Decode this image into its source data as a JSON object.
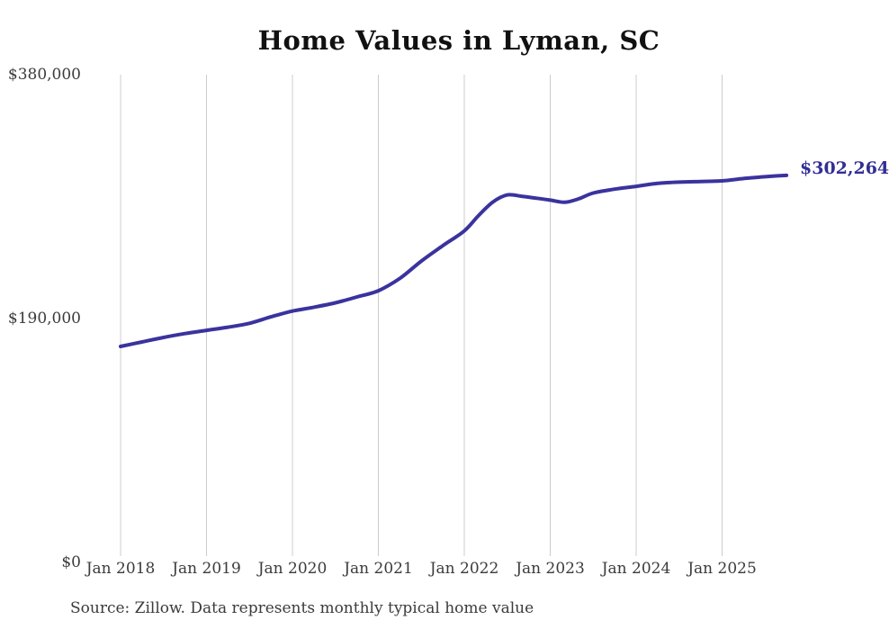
{
  "chart_data": {
    "type": "line",
    "title": "Home Values in Lyman, SC",
    "source_note": "Source: Zillow. Data represents monthly typical home value",
    "end_label": "$302,264",
    "current_value": 302264,
    "line_color": "#3a339e",
    "end_label_color": "#332e97",
    "gridline_color": "#cccccc",
    "text_color": "#3b3b3b",
    "title_color": "#111111",
    "grid": "vertical-only",
    "legend": "none",
    "ylim": [
      0,
      380000
    ],
    "xlim_dates": [
      "2018-01",
      "2025-10"
    ],
    "y_ticks": [
      {
        "value": 380000,
        "label": "$380,000"
      },
      {
        "value": 190000,
        "label": "$190,000"
      },
      {
        "value": 0,
        "label": "$0"
      }
    ],
    "x_ticks": [
      {
        "date": "2018-01",
        "label": "Jan 2018"
      },
      {
        "date": "2019-01",
        "label": "Jan 2019"
      },
      {
        "date": "2020-01",
        "label": "Jan 2020"
      },
      {
        "date": "2021-01",
        "label": "Jan 2021"
      },
      {
        "date": "2022-01",
        "label": "Jan 2022"
      },
      {
        "date": "2023-01",
        "label": "Jan 2023"
      },
      {
        "date": "2024-01",
        "label": "Jan 2024"
      },
      {
        "date": "2025-01",
        "label": "Jan 2025"
      }
    ],
    "series": [
      {
        "name": "Monthly typical home value",
        "points": [
          [
            "2018-01",
            169000
          ],
          [
            "2018-04",
            172500
          ],
          [
            "2018-07",
            176000
          ],
          [
            "2018-10",
            179000
          ],
          [
            "2019-01",
            181500
          ],
          [
            "2019-04",
            184000
          ],
          [
            "2019-07",
            187000
          ],
          [
            "2019-10",
            192000
          ],
          [
            "2020-01",
            196500
          ],
          [
            "2020-04",
            199500
          ],
          [
            "2020-07",
            203000
          ],
          [
            "2020-10",
            207500
          ],
          [
            "2021-01",
            212400
          ],
          [
            "2021-04",
            222000
          ],
          [
            "2021-07",
            235500
          ],
          [
            "2021-10",
            247500
          ],
          [
            "2022-01",
            259000
          ],
          [
            "2022-03",
            271000
          ],
          [
            "2022-05",
            281500
          ],
          [
            "2022-07",
            287000
          ],
          [
            "2022-09",
            286000
          ],
          [
            "2022-11",
            284500
          ],
          [
            "2023-01",
            283000
          ],
          [
            "2023-03",
            281300
          ],
          [
            "2023-05",
            284000
          ],
          [
            "2023-07",
            288500
          ],
          [
            "2023-10",
            291500
          ],
          [
            "2024-01",
            293700
          ],
          [
            "2024-04",
            296000
          ],
          [
            "2024-07",
            297000
          ],
          [
            "2024-10",
            297500
          ],
          [
            "2025-01",
            298000
          ],
          [
            "2025-04",
            299800
          ],
          [
            "2025-07",
            301200
          ],
          [
            "2025-10",
            302264
          ]
        ]
      }
    ]
  }
}
